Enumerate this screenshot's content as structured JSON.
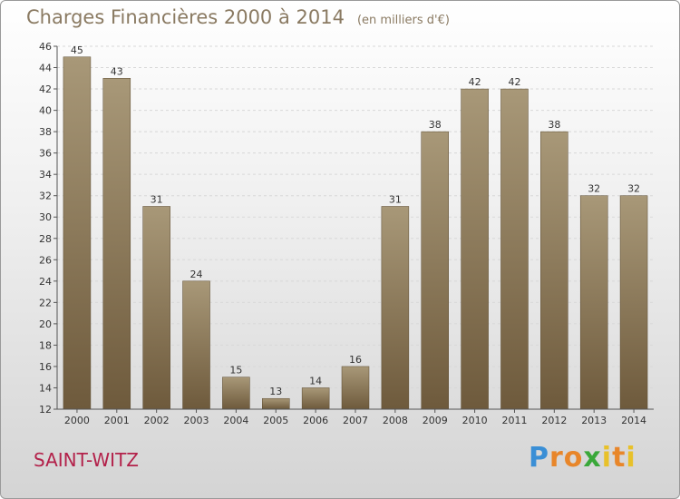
{
  "chart_data": {
    "type": "bar",
    "title": "Charges Financières 2000 à 2014",
    "subtitle": "(en milliers d'€)",
    "xlabel": "",
    "ylabel": "",
    "categories": [
      "2000",
      "2001",
      "2002",
      "2003",
      "2004",
      "2005",
      "2006",
      "2007",
      "2008",
      "2009",
      "2010",
      "2011",
      "2012",
      "2013",
      "2014"
    ],
    "values": [
      45,
      43,
      31,
      24,
      15,
      13,
      14,
      16,
      31,
      38,
      42,
      42,
      38,
      32,
      32
    ],
    "ylim": [
      12,
      46
    ],
    "yticks": [
      12,
      14,
      16,
      18,
      20,
      22,
      24,
      26,
      28,
      30,
      32,
      34,
      36,
      38,
      40,
      42,
      44,
      46
    ],
    "grid": true,
    "bar_color_top": "#a89878",
    "bar_color_bottom": "#6e5a3c"
  },
  "footer": {
    "city": "SAINT-WITZ",
    "logo_letters": [
      "P",
      "r",
      "o",
      "x",
      "i",
      "t",
      "i"
    ],
    "logo_colors": [
      "#3a8fd6",
      "#e8862a",
      "#e8862a",
      "#3aa83a",
      "#e8c12a",
      "#e8862a",
      "#e8c12a"
    ]
  }
}
